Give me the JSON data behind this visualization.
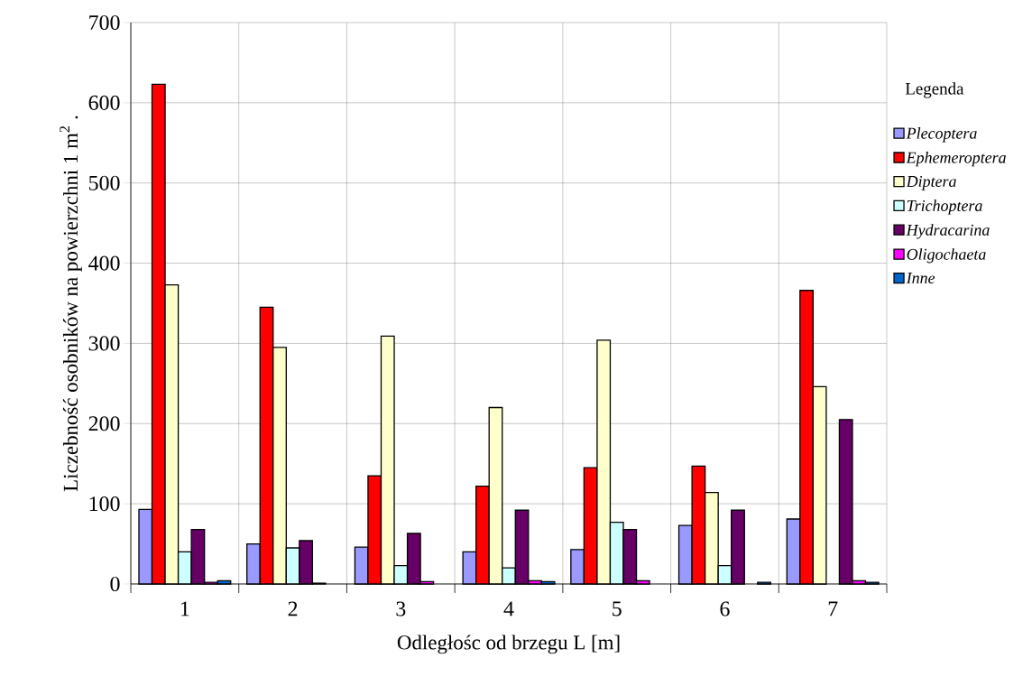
{
  "chart_data": {
    "type": "bar",
    "xlabel": "Odległośc od brzegu L [m]",
    "ylabel": "Liczebność osobników na powierzchni 1 m$^{2}$ .",
    "legend_title": "Legenda",
    "categories": [
      "1",
      "2",
      "3",
      "4",
      "5",
      "6",
      "7"
    ],
    "series": [
      {
        "name": "Plecoptera",
        "color": "#9999ff",
        "values": [
          93,
          50,
          46,
          40,
          43,
          73,
          81
        ]
      },
      {
        "name": "Ephemeroptera",
        "color": "#ff0000",
        "values": [
          623,
          345,
          135,
          122,
          145,
          147,
          366
        ]
      },
      {
        "name": "Diptera",
        "color": "#ffffcc",
        "values": [
          373,
          295,
          309,
          220,
          304,
          114,
          246
        ]
      },
      {
        "name": "Trichoptera",
        "color": "#ccffff",
        "values": [
          40,
          45,
          23,
          20,
          77,
          23,
          0
        ]
      },
      {
        "name": "Hydracarina",
        "color": "#660066",
        "values": [
          68,
          54,
          63,
          92,
          68,
          92,
          205
        ]
      },
      {
        "name": "Oligochaeta",
        "color": "#ff00ff",
        "values": [
          2,
          1,
          3,
          4,
          4,
          0,
          4
        ]
      },
      {
        "name": "Inne",
        "color": "#0066cc",
        "values": [
          4,
          0,
          0,
          3,
          0,
          2,
          2
        ]
      }
    ],
    "ylim": [
      0,
      700
    ],
    "yticks": [
      0,
      100,
      200,
      300,
      400,
      500,
      600,
      700
    ],
    "grid": true,
    "legend": "right"
  }
}
